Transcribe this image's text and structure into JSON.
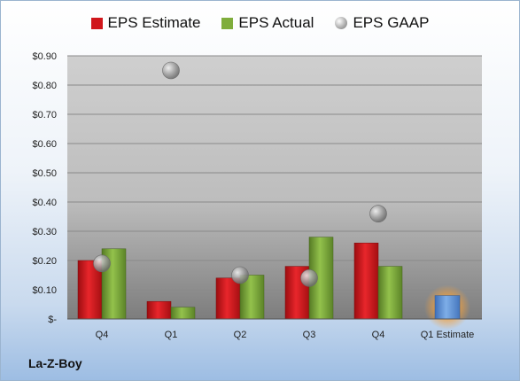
{
  "company": "La-Z-Boy",
  "chart_data": {
    "type": "bar",
    "categories": [
      "Q4",
      "Q1",
      "Q2",
      "Q3",
      "Q4",
      "Q1 Estimate"
    ],
    "series": [
      {
        "name": "EPS Estimate",
        "values": [
          0.2,
          0.06,
          0.14,
          0.18,
          0.26,
          null
        ],
        "color": "#d0161b"
      },
      {
        "name": "EPS Actual",
        "values": [
          0.24,
          0.04,
          0.15,
          0.28,
          0.18,
          null
        ],
        "color": "#7fad3c"
      },
      {
        "name": "EPS GAAP",
        "type": "scatter",
        "values": [
          0.19,
          0.85,
          0.15,
          0.14,
          0.36,
          null
        ],
        "color": "#a0a0a0"
      }
    ],
    "estimate_bar": {
      "category": "Q1 Estimate",
      "value": 0.08,
      "color": "#5b8fd6",
      "glow": "#f0a040"
    },
    "ylim": [
      0,
      0.9
    ],
    "yticks": [
      {
        "v": 0.0,
        "label": "$-"
      },
      {
        "v": 0.1,
        "label": "$0.10"
      },
      {
        "v": 0.2,
        "label": "$0.20"
      },
      {
        "v": 0.3,
        "label": "$0.30"
      },
      {
        "v": 0.4,
        "label": "$0.40"
      },
      {
        "v": 0.5,
        "label": "$0.50"
      },
      {
        "v": 0.6,
        "label": "$0.60"
      },
      {
        "v": 0.7,
        "label": "$0.70"
      },
      {
        "v": 0.8,
        "label": "$0.80"
      },
      {
        "v": 0.9,
        "label": "$0.90"
      }
    ],
    "legend_position": "top",
    "grid": true
  }
}
